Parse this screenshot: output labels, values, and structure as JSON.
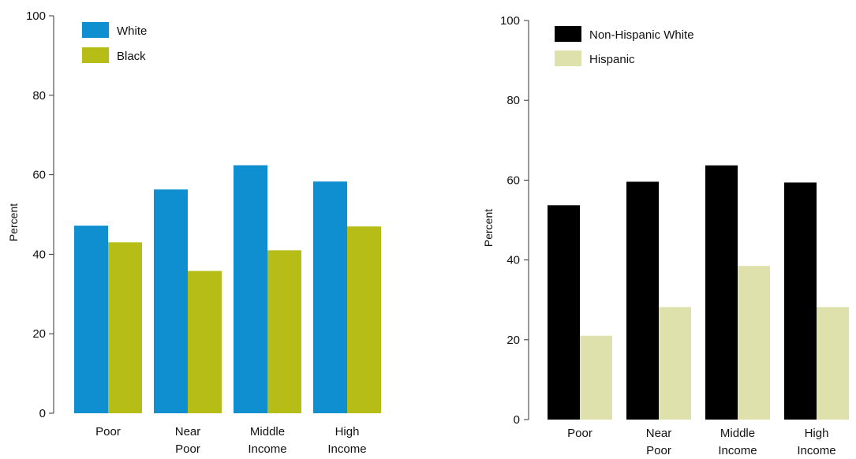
{
  "chart_data": [
    {
      "type": "bar",
      "categories": [
        [
          "Poor"
        ],
        [
          "Near",
          "Poor"
        ],
        [
          "Middle",
          "Income"
        ],
        [
          "High",
          "Income"
        ]
      ],
      "series": [
        {
          "name": "White",
          "color": "#0f8fcf",
          "values": [
            47.2,
            56.3,
            62.4,
            58.3
          ]
        },
        {
          "name": "Black",
          "color": "#b6bd17",
          "values": [
            43.0,
            35.8,
            41.0,
            47.0
          ]
        }
      ],
      "ylabel": "Percent",
      "ylim": [
        0,
        100
      ],
      "yticks": [
        0,
        20,
        40,
        60,
        80,
        100
      ],
      "grid": false,
      "legend": "top-left"
    },
    {
      "type": "bar",
      "categories": [
        [
          "Poor"
        ],
        [
          "Near",
          "Poor"
        ],
        [
          "Middle",
          "Income"
        ],
        [
          "High",
          "Income"
        ]
      ],
      "series": [
        {
          "name": "Non-Hispanic White",
          "color": "#000000",
          "values": [
            53.7,
            59.6,
            63.7,
            59.4
          ]
        },
        {
          "name": "Hispanic",
          "color": "#dfe1ad",
          "values": [
            21.0,
            28.2,
            38.5,
            28.2
          ]
        }
      ],
      "ylabel": "Percent",
      "ylim": [
        0,
        100
      ],
      "yticks": [
        0,
        20,
        40,
        60,
        80,
        100
      ],
      "grid": false,
      "legend": "top-left"
    }
  ]
}
